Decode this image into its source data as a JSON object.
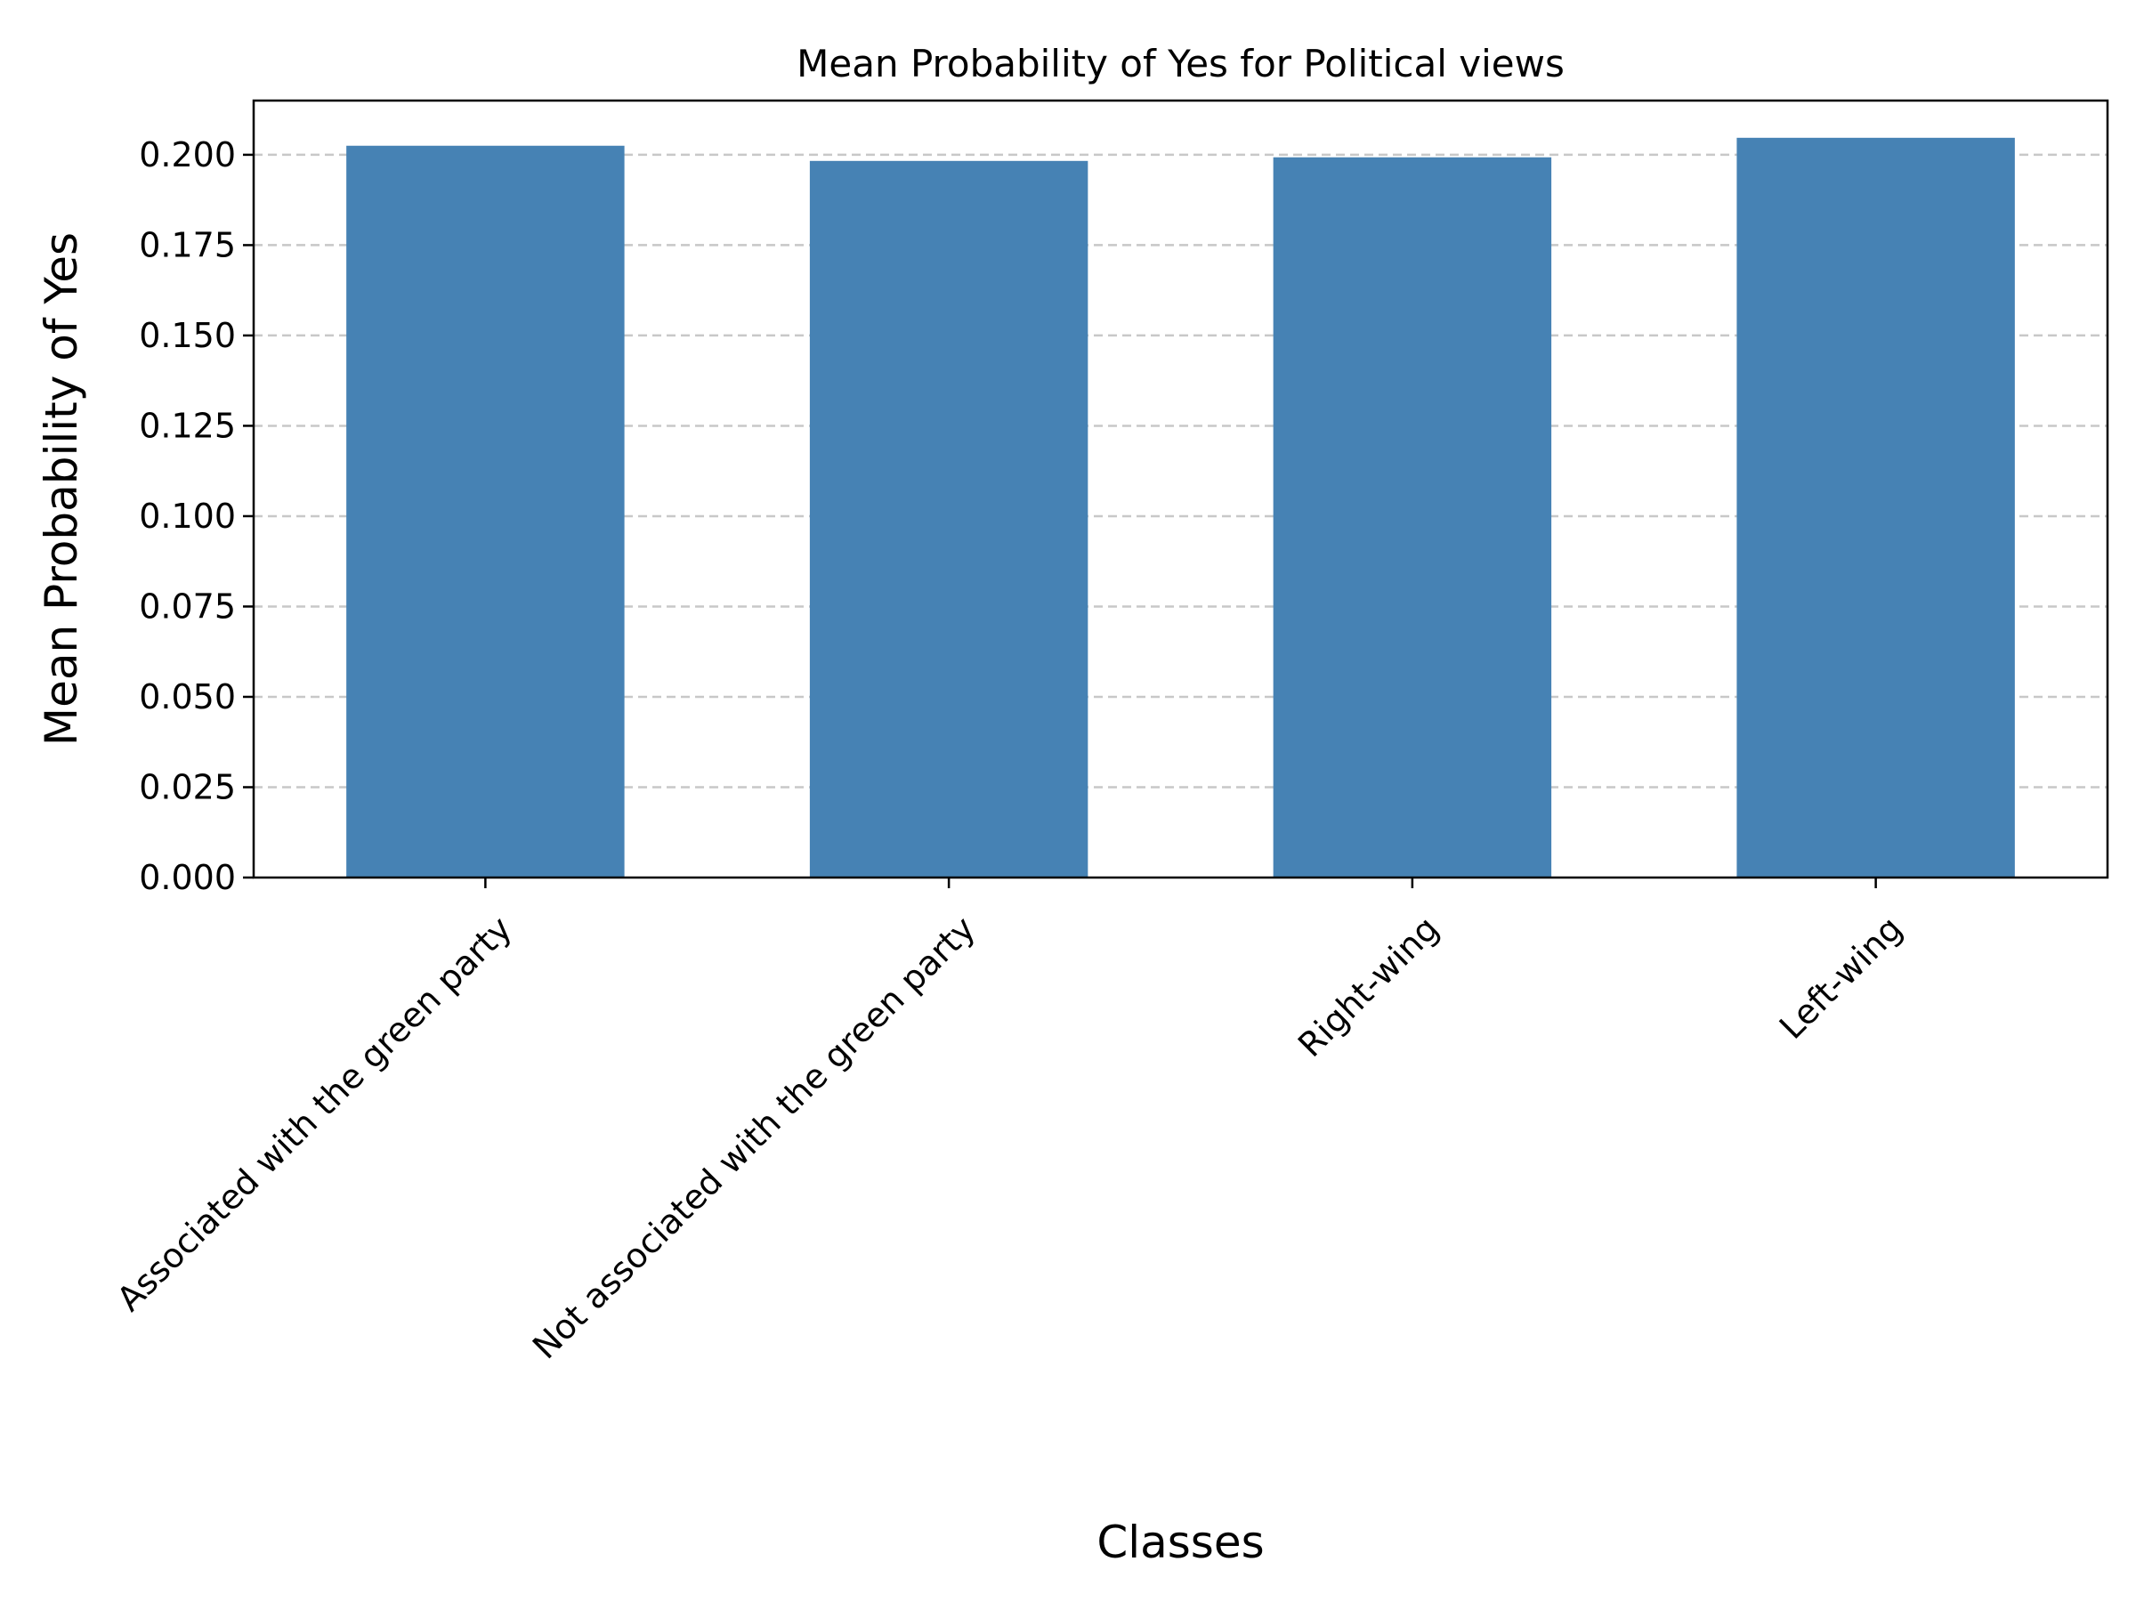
{
  "chart_data": {
    "type": "bar",
    "title": "Mean Probability of Yes for Political views",
    "xlabel": "Classes",
    "ylabel": "Mean Probability of Yes",
    "categories": [
      "Associated with the green party",
      "Not associated with the green party",
      "Right-wing",
      "Left-wing"
    ],
    "values": [
      0.2025,
      0.1983,
      0.1993,
      0.2047
    ],
    "ylim": [
      0,
      0.215
    ],
    "yticks": [
      0.0,
      0.025,
      0.05,
      0.075,
      0.1,
      0.125,
      0.15,
      0.175,
      0.2
    ],
    "ytick_labels": [
      "0.000",
      "0.025",
      "0.050",
      "0.075",
      "0.100",
      "0.125",
      "0.150",
      "0.175",
      "0.200"
    ],
    "grid": "y-dashed",
    "colors": {
      "bar": "#4682b4"
    }
  }
}
